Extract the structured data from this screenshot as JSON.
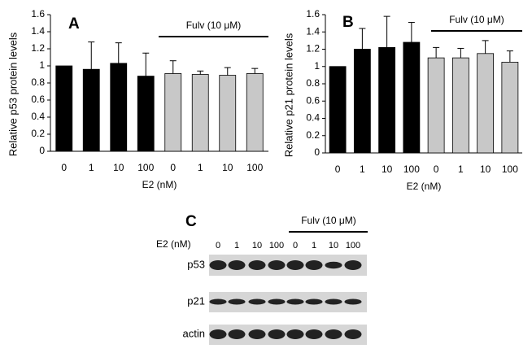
{
  "chart_data": [
    {
      "type": "bar",
      "panel": "A",
      "ylabel": "Relative p53 protein levels",
      "xlabel": "E2 (nM)",
      "annotation": "Fulv (10 μM)",
      "categories": [
        "0",
        "1",
        "10",
        "100",
        "0",
        "1",
        "10",
        "100"
      ],
      "values": [
        1.0,
        0.96,
        1.03,
        0.88,
        0.91,
        0.9,
        0.89,
        0.91
      ],
      "errors": [
        0,
        0.32,
        0.24,
        0.27,
        0.15,
        0.04,
        0.09,
        0.06
      ],
      "colors": [
        "#000000",
        "#000000",
        "#000000",
        "#000000",
        "#c8c8c8",
        "#c8c8c8",
        "#c8c8c8",
        "#c8c8c8"
      ],
      "ylim": [
        0,
        1.6
      ],
      "yticks": [
        0,
        0.2,
        0.4,
        0.6,
        0.8,
        1,
        1.2,
        1.4,
        1.6
      ],
      "grid": false
    },
    {
      "type": "bar",
      "panel": "B",
      "ylabel": "Relative p21 protein levels",
      "xlabel": "E2 (nM)",
      "annotation": "Fulv (10 μM)",
      "categories": [
        "0",
        "1",
        "10",
        "100",
        "0",
        "1",
        "10",
        "100"
      ],
      "values": [
        1.0,
        1.2,
        1.22,
        1.28,
        1.1,
        1.1,
        1.15,
        1.05
      ],
      "errors": [
        0,
        0.24,
        0.36,
        0.23,
        0.12,
        0.11,
        0.15,
        0.13
      ],
      "colors": [
        "#000000",
        "#000000",
        "#000000",
        "#000000",
        "#c8c8c8",
        "#c8c8c8",
        "#c8c8c8",
        "#c8c8c8"
      ],
      "ylim": [
        0,
        1.6
      ],
      "yticks": [
        0,
        0.2,
        0.4,
        0.6,
        0.8,
        1,
        1.2,
        1.4,
        1.6
      ],
      "grid": false
    }
  ],
  "blot": {
    "panel": "C",
    "e2_label": "E2 (nM)",
    "treatment": "Fulv (10 μM)",
    "lanes": [
      "0",
      "1",
      "10",
      "100",
      "0",
      "1",
      "10",
      "100"
    ],
    "rows": [
      "p53",
      "p21",
      "actin"
    ]
  }
}
